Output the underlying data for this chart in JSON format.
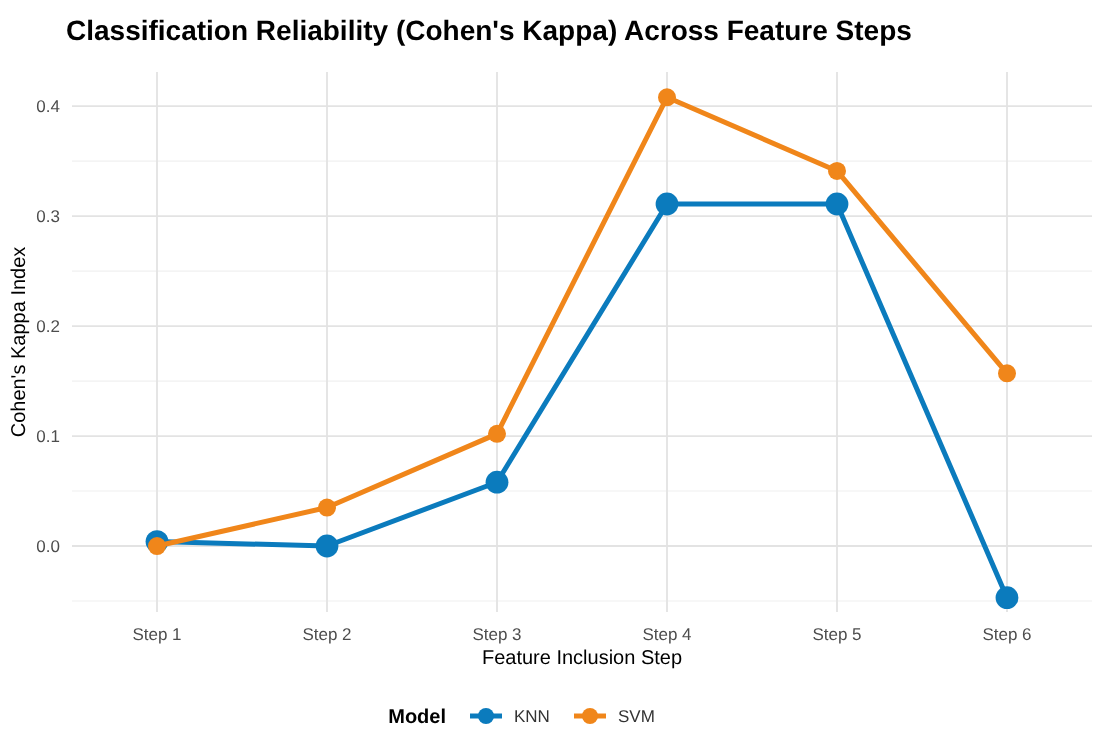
{
  "chart_data": {
    "type": "line",
    "title": "Classification Reliability (Cohen's Kappa) Across Feature Steps",
    "xlabel": "Feature Inclusion Step",
    "ylabel": "Cohen's Kappa Index",
    "legend_title": "Model",
    "categories": [
      "Step 1",
      "Step 2",
      "Step 3",
      "Step 4",
      "Step 5",
      "Step 6"
    ],
    "series": [
      {
        "name": "KNN",
        "color": "#0b7bbd",
        "values": [
          0.004,
          0.0,
          0.058,
          0.311,
          0.311,
          -0.047
        ]
      },
      {
        "name": "SVM",
        "color": "#f0861a",
        "values": [
          0.0,
          0.035,
          0.102,
          0.408,
          0.341,
          0.157
        ]
      }
    ],
    "ylim": [
      -0.06,
      0.431
    ],
    "yticks": [
      {
        "value": 0,
        "label": "0.0"
      },
      0.1,
      0.2,
      0.3,
      0.4
    ],
    "grid": true,
    "legend": "bottom",
    "marker": "circle",
    "line_style": "solid"
  }
}
